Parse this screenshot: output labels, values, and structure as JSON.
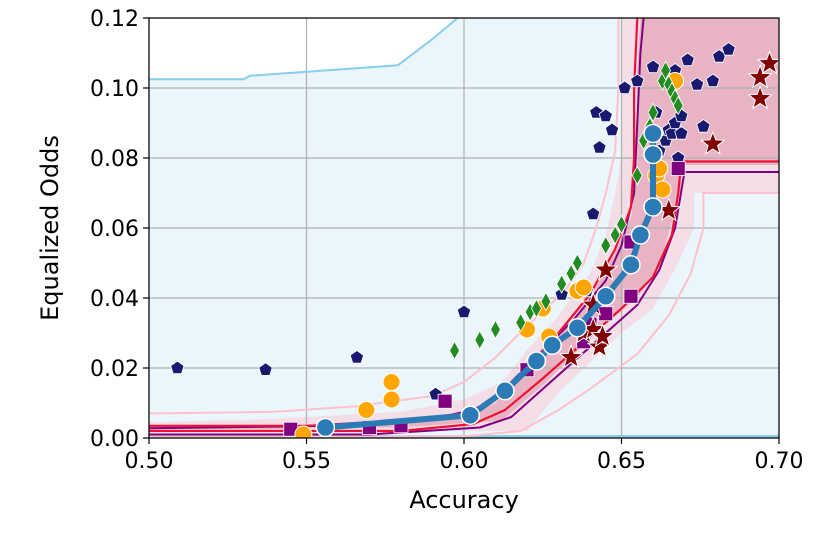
{
  "chart_data": {
    "type": "scatter",
    "xlabel": "Accuracy",
    "ylabel": "Equalized Odds",
    "xlim": [
      0.5,
      0.7
    ],
    "ylim": [
      0.0,
      0.12
    ],
    "x_ticks": [
      "0.50",
      "0.55",
      "0.60",
      "0.65",
      "0.70"
    ],
    "y_ticks": [
      "0.00",
      "0.02",
      "0.04",
      "0.06",
      "0.08",
      "0.10",
      "0.12"
    ],
    "grid": true,
    "colors": {
      "background": "#eaf6fb",
      "light_band_line": "#87ceeb",
      "front_fill": "#e8b4c4",
      "front_band_fill": "#f3dde6",
      "front_outer_line": "#ffc0cb",
      "red_line": "#ee1133",
      "purple_line": "#800080",
      "curve": "#2c7bb6",
      "navy": "#191970",
      "orange": "#ffa500",
      "purple": "#800080",
      "green": "#228b22",
      "darkred": "#800000"
    },
    "region_light_blue": [
      [
        0.5,
        0.1025
      ],
      [
        0.53,
        0.1025
      ],
      [
        0.532,
        0.1035
      ],
      [
        0.579,
        0.1065
      ],
      [
        0.59,
        0.114
      ],
      [
        0.598,
        0.12
      ],
      [
        0.7,
        0.12
      ],
      [
        0.7,
        0.0
      ],
      [
        0.5,
        0.0
      ]
    ],
    "front_region": [
      [
        0.5,
        0.0025
      ],
      [
        0.545,
        0.0025
      ],
      [
        0.58,
        0.004
      ],
      [
        0.6,
        0.006
      ],
      [
        0.61,
        0.01
      ],
      [
        0.62,
        0.019
      ],
      [
        0.63,
        0.029
      ],
      [
        0.64,
        0.04
      ],
      [
        0.648,
        0.053
      ],
      [
        0.653,
        0.063
      ],
      [
        0.655,
        0.075
      ],
      [
        0.655,
        0.105
      ],
      [
        0.656,
        0.12
      ],
      [
        0.7,
        0.12
      ],
      [
        0.7,
        0.078
      ],
      [
        0.669,
        0.078
      ],
      [
        0.669,
        0.071
      ],
      [
        0.666,
        0.062
      ],
      [
        0.662,
        0.049
      ],
      [
        0.655,
        0.04
      ],
      [
        0.645,
        0.033
      ],
      [
        0.625,
        0.015
      ],
      [
        0.612,
        0.005
      ],
      [
        0.58,
        0.003
      ],
      [
        0.5,
        0.003
      ]
    ],
    "front_band": [
      [
        0.5,
        0.0045
      ],
      [
        0.54,
        0.0055
      ],
      [
        0.58,
        0.0075
      ],
      [
        0.6,
        0.011
      ],
      [
        0.612,
        0.016
      ],
      [
        0.62,
        0.025
      ],
      [
        0.63,
        0.035
      ],
      [
        0.64,
        0.047
      ],
      [
        0.645,
        0.058
      ],
      [
        0.648,
        0.07
      ],
      [
        0.65,
        0.08
      ],
      [
        0.65,
        0.12
      ],
      [
        0.66,
        0.12
      ],
      [
        0.66,
        0.09
      ],
      [
        0.66,
        0.08
      ],
      [
        0.7,
        0.08
      ],
      [
        0.7,
        0.07
      ],
      [
        0.673,
        0.07
      ],
      [
        0.673,
        0.06
      ],
      [
        0.668,
        0.05
      ],
      [
        0.66,
        0.037
      ],
      [
        0.65,
        0.03
      ],
      [
        0.63,
        0.013
      ],
      [
        0.62,
        0.002
      ],
      [
        0.58,
        0.002
      ],
      [
        0.5,
        0.002
      ]
    ],
    "red_upper": [
      [
        0.5,
        0.0035
      ],
      [
        0.55,
        0.0035
      ],
      [
        0.58,
        0.005
      ],
      [
        0.6,
        0.007
      ],
      [
        0.61,
        0.011
      ],
      [
        0.62,
        0.02
      ],
      [
        0.63,
        0.03
      ],
      [
        0.64,
        0.041
      ],
      [
        0.648,
        0.054
      ],
      [
        0.653,
        0.066
      ],
      [
        0.654,
        0.08
      ],
      [
        0.654,
        0.1
      ],
      [
        0.655,
        0.12
      ]
    ],
    "red_lower": [
      [
        0.5,
        0.002
      ],
      [
        0.58,
        0.002
      ],
      [
        0.603,
        0.004
      ],
      [
        0.613,
        0.008
      ],
      [
        0.625,
        0.017
      ],
      [
        0.64,
        0.029
      ],
      [
        0.65,
        0.037
      ],
      [
        0.66,
        0.046
      ],
      [
        0.666,
        0.058
      ],
      [
        0.668,
        0.07
      ],
      [
        0.669,
        0.079
      ],
      [
        0.7,
        0.079
      ]
    ],
    "purple_upper": [
      [
        0.5,
        0.0028
      ],
      [
        0.56,
        0.0035
      ],
      [
        0.59,
        0.0055
      ],
      [
        0.605,
        0.0085
      ],
      [
        0.615,
        0.016
      ],
      [
        0.625,
        0.025
      ],
      [
        0.635,
        0.034
      ],
      [
        0.645,
        0.045
      ],
      [
        0.65,
        0.055
      ],
      [
        0.654,
        0.07
      ],
      [
        0.655,
        0.09
      ],
      [
        0.656,
        0.11
      ],
      [
        0.657,
        0.12
      ]
    ],
    "purple_lower": [
      [
        0.5,
        0.001
      ],
      [
        0.57,
        0.001
      ],
      [
        0.605,
        0.003
      ],
      [
        0.615,
        0.006
      ],
      [
        0.63,
        0.018
      ],
      [
        0.645,
        0.03
      ],
      [
        0.655,
        0.038
      ],
      [
        0.662,
        0.048
      ],
      [
        0.667,
        0.06
      ],
      [
        0.67,
        0.076
      ],
      [
        0.7,
        0.076
      ]
    ],
    "outer_upper": [
      [
        0.5,
        0.007
      ],
      [
        0.54,
        0.0075
      ],
      [
        0.565,
        0.009
      ],
      [
        0.59,
        0.012
      ],
      [
        0.6,
        0.016
      ],
      [
        0.61,
        0.023
      ],
      [
        0.62,
        0.032
      ],
      [
        0.632,
        0.042
      ],
      [
        0.638,
        0.05
      ],
      [
        0.642,
        0.06
      ],
      [
        0.645,
        0.07
      ],
      [
        0.648,
        0.082
      ],
      [
        0.649,
        0.1
      ],
      [
        0.649,
        0.12
      ]
    ],
    "outer_lower": [
      [
        0.5,
        0.0005
      ],
      [
        0.6,
        0.0005
      ],
      [
        0.618,
        0.002
      ],
      [
        0.63,
        0.008
      ],
      [
        0.64,
        0.014
      ],
      [
        0.655,
        0.024
      ],
      [
        0.665,
        0.035
      ],
      [
        0.672,
        0.047
      ],
      [
        0.676,
        0.06
      ],
      [
        0.676,
        0.07
      ],
      [
        0.7,
        0.07
      ]
    ],
    "light_blue_bottom": [
      [
        0.5,
        0.0005
      ],
      [
        0.7,
        0.0005
      ]
    ],
    "curve": [
      [
        0.556,
        0.003
      ],
      [
        0.602,
        0.0065
      ],
      [
        0.613,
        0.0135
      ],
      [
        0.623,
        0.022
      ],
      [
        0.628,
        0.0265
      ],
      [
        0.636,
        0.0315
      ],
      [
        0.645,
        0.0405
      ],
      [
        0.653,
        0.0495
      ],
      [
        0.656,
        0.058
      ],
      [
        0.66,
        0.066
      ],
      [
        0.66,
        0.081
      ],
      [
        0.66,
        0.087
      ]
    ],
    "series_navy": [
      [
        0.509,
        0.02
      ],
      [
        0.537,
        0.0195
      ],
      [
        0.566,
        0.023
      ],
      [
        0.591,
        0.0125
      ],
      [
        0.6,
        0.036
      ],
      [
        0.631,
        0.041
      ],
      [
        0.639,
        0.042
      ],
      [
        0.641,
        0.064
      ],
      [
        0.643,
        0.083
      ],
      [
        0.642,
        0.093
      ],
      [
        0.645,
        0.092
      ],
      [
        0.647,
        0.088
      ],
      [
        0.651,
        0.1
      ],
      [
        0.655,
        0.102
      ],
      [
        0.66,
        0.106
      ],
      [
        0.661,
        0.093
      ],
      [
        0.662,
        0.082
      ],
      [
        0.664,
        0.085
      ],
      [
        0.665,
        0.088
      ],
      [
        0.666,
        0.087
      ],
      [
        0.667,
        0.09
      ],
      [
        0.667,
        0.105
      ],
      [
        0.668,
        0.08
      ],
      [
        0.669,
        0.087
      ],
      [
        0.669,
        0.092
      ],
      [
        0.671,
        0.108
      ],
      [
        0.674,
        0.101
      ],
      [
        0.676,
        0.089
      ],
      [
        0.679,
        0.102
      ],
      [
        0.681,
        0.109
      ],
      [
        0.684,
        0.111
      ]
    ],
    "series_orange": [
      [
        0.549,
        0.001
      ],
      [
        0.569,
        0.008
      ],
      [
        0.577,
        0.011
      ],
      [
        0.577,
        0.016
      ],
      [
        0.62,
        0.031
      ],
      [
        0.625,
        0.037
      ],
      [
        0.627,
        0.029
      ],
      [
        0.636,
        0.042
      ],
      [
        0.638,
        0.043
      ],
      [
        0.661,
        0.075
      ],
      [
        0.662,
        0.077
      ],
      [
        0.663,
        0.071
      ],
      [
        0.667,
        0.102
      ]
    ],
    "series_purple": [
      [
        0.545,
        0.0025
      ],
      [
        0.57,
        0.003
      ],
      [
        0.58,
        0.0035
      ],
      [
        0.594,
        0.0105
      ],
      [
        0.62,
        0.0195
      ],
      [
        0.638,
        0.0275
      ],
      [
        0.64,
        0.0325
      ],
      [
        0.645,
        0.0355
      ],
      [
        0.653,
        0.0405
      ],
      [
        0.653,
        0.056
      ],
      [
        0.668,
        0.077
      ]
    ],
    "series_green": [
      [
        0.597,
        0.025
      ],
      [
        0.605,
        0.028
      ],
      [
        0.61,
        0.031
      ],
      [
        0.618,
        0.033
      ],
      [
        0.621,
        0.036
      ],
      [
        0.623,
        0.037
      ],
      [
        0.626,
        0.039
      ],
      [
        0.631,
        0.044
      ],
      [
        0.634,
        0.047
      ],
      [
        0.636,
        0.05
      ],
      [
        0.645,
        0.055
      ],
      [
        0.648,
        0.058
      ],
      [
        0.65,
        0.061
      ],
      [
        0.655,
        0.075
      ],
      [
        0.657,
        0.085
      ],
      [
        0.659,
        0.089
      ],
      [
        0.66,
        0.093
      ],
      [
        0.663,
        0.102
      ],
      [
        0.664,
        0.105
      ],
      [
        0.665,
        0.101
      ],
      [
        0.666,
        0.099
      ],
      [
        0.667,
        0.097
      ],
      [
        0.668,
        0.095
      ]
    ],
    "series_darkred": [
      [
        0.634,
        0.023
      ],
      [
        0.638,
        0.03
      ],
      [
        0.641,
        0.031
      ],
      [
        0.643,
        0.026
      ],
      [
        0.644,
        0.029
      ],
      [
        0.645,
        0.048
      ],
      [
        0.641,
        0.038
      ],
      [
        0.665,
        0.065
      ],
      [
        0.679,
        0.084
      ],
      [
        0.694,
        0.097
      ],
      [
        0.694,
        0.103
      ],
      [
        0.697,
        0.107
      ]
    ]
  }
}
